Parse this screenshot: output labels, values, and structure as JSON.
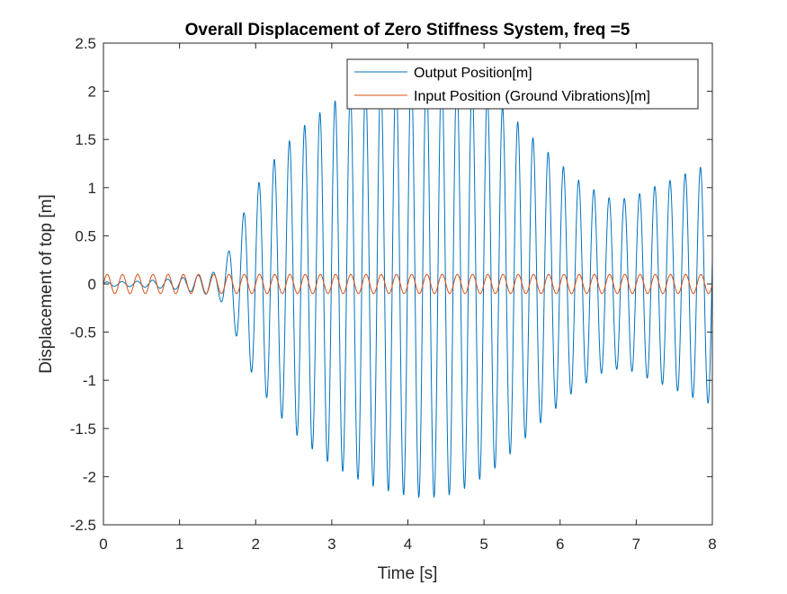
{
  "chart_data": {
    "type": "line",
    "title": "Overall Displacement of Zero Stiffness System, freq =5",
    "xlabel": "Time [s]",
    "ylabel": "Displacement of top [m]",
    "xlim": [
      0,
      8
    ],
    "ylim": [
      -2.5,
      2.5
    ],
    "xticks": [
      0,
      1,
      2,
      3,
      4,
      5,
      6,
      7,
      8
    ],
    "yticks": [
      -2.5,
      -2,
      -1.5,
      -1,
      -0.5,
      0,
      0.5,
      1,
      1.5,
      2,
      2.5
    ],
    "xtick_labels": [
      "0",
      "1",
      "2",
      "3",
      "4",
      "5",
      "6",
      "7",
      "8"
    ],
    "ytick_labels": [
      "-2.5",
      "-2",
      "-1.5",
      "-1",
      "-0.5",
      "0",
      "0.5",
      "1",
      "1.5",
      "2",
      "2.5"
    ],
    "grid": false,
    "legend_position": "top-right",
    "frequency_hz": 5,
    "series": [
      {
        "name": "Output Position[m]",
        "color": "#0072BD",
        "model": "sinusoid",
        "frequency_hz": 5,
        "phase": 0.2,
        "envelope": {
          "t": [
            0,
            0.5,
            1.0,
            1.3,
            1.5,
            1.6,
            1.7,
            1.8,
            1.9,
            2.0,
            2.2,
            2.4,
            2.6,
            2.8,
            3.0,
            3.2,
            3.4,
            3.6,
            3.8,
            4.0,
            4.2,
            4.4,
            4.6,
            4.8,
            5.0,
            5.2,
            5.4,
            5.6,
            5.8,
            6.0,
            6.2,
            6.4,
            6.6,
            6.8,
            7.0,
            7.2,
            7.4,
            7.6,
            7.8,
            8.0
          ],
          "amplitude": [
            0.02,
            0.03,
            0.06,
            0.1,
            0.13,
            0.25,
            0.45,
            0.65,
            0.85,
            1.0,
            1.25,
            1.45,
            1.62,
            1.75,
            1.88,
            1.97,
            2.05,
            2.12,
            2.16,
            2.2,
            2.22,
            2.21,
            2.18,
            2.1,
            2.0,
            1.88,
            1.72,
            1.55,
            1.4,
            1.25,
            1.1,
            1.0,
            0.9,
            0.88,
            0.92,
            1.0,
            1.06,
            1.13,
            1.2,
            1.25
          ]
        }
      },
      {
        "name": "Input Position (Ground Vibrations)[m]",
        "color": "#D95319",
        "model": "sinusoid",
        "frequency_hz": 5,
        "amplitude": 0.1,
        "phase": 0
      }
    ]
  }
}
